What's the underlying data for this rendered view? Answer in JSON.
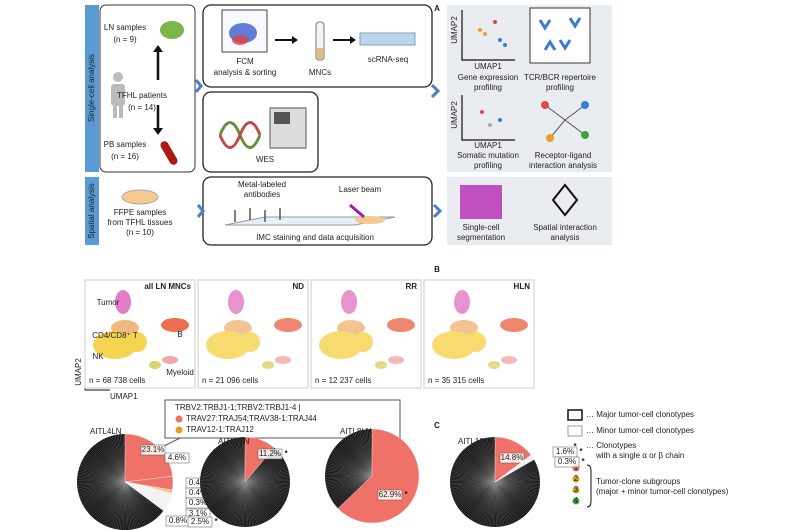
{
  "panel_a": {
    "label": "A",
    "single_cell": "Single-cell analysis",
    "spatial": "Spatial analysis",
    "ln_samples": "LN samples",
    "ln_n": "(n = 9)",
    "patients": "TFHL patients",
    "patients_n": "(n = 14)",
    "pb_samples": "PB samples",
    "pb_n": "(n = 16)",
    "fcm_1": "FCM",
    "fcm_2": "analysis & sorting",
    "mncs": "MNCs",
    "scrna": "scRNA-seq",
    "wes": "WES",
    "umap2_a": "UMAP2",
    "umap1_a": "UMAP1",
    "gene_1": "Gene expression",
    "gene_2": "profiling",
    "tcr_1": "TCR/BCR repertoire",
    "tcr_2": "profiling",
    "umap2_b": "UMAP2",
    "umap1_b": "UMAP1",
    "somatic_1": "Somatic mutation",
    "somatic_2": "profiling",
    "receptor_1": "Receptor-ligand",
    "receptor_2": "interaction analysis",
    "ffpe_1": "FFPE samples",
    "ffpe_2": "from TFHL tissues",
    "ffpe_n": "(n = 10)",
    "metal_1": "Metal-labeled",
    "metal_2": "antibodies",
    "laser": "Laser beam",
    "imc": "IMC staining and data acquisition",
    "seg_1": "Single-cell",
    "seg_2": "segmentation",
    "spatial_1": "Spatial interaction",
    "spatial_2": "analysis"
  },
  "panel_b": {
    "label": "B",
    "umap2": "UMAP2",
    "umap1": "UMAP1",
    "panels": [
      {
        "title": "all LN MNCs",
        "cells": "n = 68 738 cells"
      },
      {
        "title": "ND",
        "cells": "n = 21 096 cells"
      },
      {
        "title": "RR",
        "cells": "n = 12 237 cells"
      },
      {
        "title": "HLN",
        "cells": "n = 35 315 cells"
      }
    ],
    "tumor": "Tumor",
    "t_cells": "CD4/CD8⁺ T",
    "nk": "NK",
    "b": "B",
    "myeloid": "Myeloid"
  },
  "panel_c": {
    "label": "C",
    "clone_box": [
      "TRBV2:TRBJ1-1;TRBV2:TRBJ1-4 |",
      "TRAV27:TRAJ54;TRAV38-1:TRAJ44",
      "TRAV12-1:TRAJ12"
    ],
    "star": "*",
    "pies": [
      {
        "title": "AITL4LN",
        "values": [
          23.1,
          4.6,
          0.4,
          0.4,
          0.3,
          3.1,
          0.8,
          2.5
        ],
        "value_labels": [
          "23.1%",
          "4.6%",
          "0.4%",
          "0.4%",
          "0.3%",
          "3.1%",
          "0.8%",
          "2.5%"
        ],
        "colors": [
          "#f07167",
          "#f07167",
          "#e39b2a",
          "#e39b2a",
          "#e39b2a",
          "#f2f2f2",
          "#f2f2f2",
          "#f2f2f2"
        ],
        "starred": [
          false,
          false,
          false,
          false,
          false,
          false,
          false,
          true
        ]
      },
      {
        "title": "AITL7LN",
        "values": [
          11.2
        ],
        "value_labels": [
          "11.2%"
        ],
        "colors": [
          "#f07167"
        ],
        "starred": [
          true
        ]
      },
      {
        "title": "AITL8LN",
        "values": [
          62.9
        ],
        "value_labels": [
          "62.9%"
        ],
        "colors": [
          "#f07167"
        ],
        "starred": [
          true
        ]
      },
      {
        "title": "AITL12LN",
        "values": [
          14.8,
          1.6,
          0.3
        ],
        "value_labels": [
          "14.8%",
          "1.6%",
          "0.3%"
        ],
        "colors": [
          "#f07167",
          "#f2f2f2",
          "#f2f2f2"
        ],
        "starred": [
          false,
          true,
          true
        ]
      }
    ],
    "legend": {
      "major": "… Major tumor-cell clonotypes",
      "minor": "… Minor tumor-cell clonotypes",
      "single_1": "… Clonotypes",
      "single_2": "with a single α or β chain",
      "subgroups_1": "Tumor-clone subgroups",
      "subgroups_2": "(major + minor tumor-cell clonotypes)",
      "subgroups": [
        {
          "label": "1",
          "color": "#f07167"
        },
        {
          "label": "2",
          "color": "#e39b2a"
        },
        {
          "label": "3",
          "color": "#b5a82c"
        },
        {
          "label": "4",
          "color": "#45a044"
        }
      ]
    }
  }
}
